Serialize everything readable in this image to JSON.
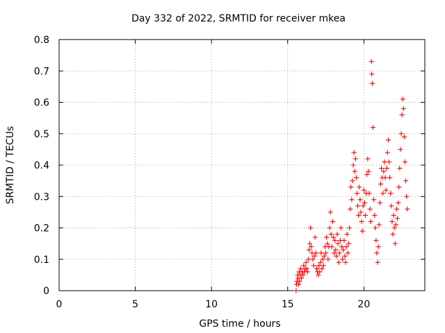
{
  "chart_data": {
    "type": "scatter",
    "title": "Day 332 of 2022, SRMTID for receiver mkea",
    "xlabel": "GPS time / hours",
    "ylabel": "SRMTID / TECUs",
    "xlim": [
      0,
      24
    ],
    "ylim": [
      0,
      0.8
    ],
    "xticks": [
      0,
      5,
      10,
      15,
      20
    ],
    "xtick_labels": [
      "0",
      "5",
      "10",
      "15",
      "20"
    ],
    "yticks": [
      0,
      0.1,
      0.2,
      0.3,
      0.4,
      0.5,
      0.6,
      0.7,
      0.8
    ],
    "ytick_labels": [
      "0",
      "0.1",
      "0.2",
      "0.3",
      "0.4",
      "0.5",
      "0.6",
      "0.7",
      "0.8"
    ],
    "grid": true,
    "marker": "plus",
    "color": "#ff0000",
    "series": [
      {
        "name": "mkea",
        "points": [
          [
            15.55,
            0.0
          ],
          [
            15.58,
            0.02
          ],
          [
            15.62,
            0.03
          ],
          [
            15.65,
            0.05
          ],
          [
            15.68,
            0.04
          ],
          [
            15.72,
            0.02
          ],
          [
            15.75,
            0.06
          ],
          [
            15.78,
            0.03
          ],
          [
            15.82,
            0.05
          ],
          [
            15.85,
            0.07
          ],
          [
            15.9,
            0.04
          ],
          [
            15.95,
            0.06
          ],
          [
            16.0,
            0.05
          ],
          [
            16.05,
            0.08
          ],
          [
            16.1,
            0.06
          ],
          [
            16.15,
            0.07
          ],
          [
            16.2,
            0.09
          ],
          [
            16.25,
            0.07
          ],
          [
            16.3,
            0.06
          ],
          [
            16.35,
            0.1
          ],
          [
            16.4,
            0.13
          ],
          [
            16.45,
            0.15
          ],
          [
            16.5,
            0.2
          ],
          [
            16.55,
            0.14
          ],
          [
            16.6,
            0.12
          ],
          [
            16.65,
            0.1
          ],
          [
            16.7,
            0.08
          ],
          [
            16.75,
            0.11
          ],
          [
            16.8,
            0.17
          ],
          [
            16.85,
            0.12
          ],
          [
            16.9,
            0.07
          ],
          [
            16.95,
            0.06
          ],
          [
            17.0,
            0.05
          ],
          [
            17.05,
            0.08
          ],
          [
            17.1,
            0.06
          ],
          [
            17.15,
            0.09
          ],
          [
            17.2,
            0.12
          ],
          [
            17.25,
            0.07
          ],
          [
            17.3,
            0.1
          ],
          [
            17.35,
            0.08
          ],
          [
            17.4,
            0.11
          ],
          [
            17.45,
            0.14
          ],
          [
            17.5,
            0.12
          ],
          [
            17.55,
            0.17
          ],
          [
            17.6,
            0.15
          ],
          [
            17.65,
            0.1
          ],
          [
            17.7,
            0.14
          ],
          [
            17.75,
            0.2
          ],
          [
            17.8,
            0.25
          ],
          [
            17.85,
            0.18
          ],
          [
            17.9,
            0.14
          ],
          [
            17.95,
            0.22
          ],
          [
            18.0,
            0.17
          ],
          [
            18.05,
            0.12
          ],
          [
            18.1,
            0.16
          ],
          [
            18.15,
            0.13
          ],
          [
            18.2,
            0.11
          ],
          [
            18.25,
            0.18
          ],
          [
            18.3,
            0.15
          ],
          [
            18.35,
            0.09
          ],
          [
            18.4,
            0.12
          ],
          [
            18.45,
            0.16
          ],
          [
            18.5,
            0.2
          ],
          [
            18.55,
            0.14
          ],
          [
            18.6,
            0.1
          ],
          [
            18.65,
            0.13
          ],
          [
            18.7,
            0.16
          ],
          [
            18.75,
            0.11
          ],
          [
            18.8,
            0.09
          ],
          [
            18.85,
            0.14
          ],
          [
            18.9,
            0.18
          ],
          [
            18.95,
            0.12
          ],
          [
            19.0,
            0.15
          ],
          [
            19.05,
            0.2
          ],
          [
            19.1,
            0.26
          ],
          [
            19.15,
            0.33
          ],
          [
            19.2,
            0.29
          ],
          [
            19.25,
            0.35
          ],
          [
            19.3,
            0.4
          ],
          [
            19.35,
            0.44
          ],
          [
            19.4,
            0.38
          ],
          [
            19.45,
            0.42
          ],
          [
            19.5,
            0.36
          ],
          [
            19.55,
            0.31
          ],
          [
            19.6,
            0.27
          ],
          [
            19.65,
            0.24
          ],
          [
            19.7,
            0.33
          ],
          [
            19.75,
            0.29
          ],
          [
            19.8,
            0.25
          ],
          [
            19.85,
            0.22
          ],
          [
            19.9,
            0.19
          ],
          [
            19.95,
            0.27
          ],
          [
            20.0,
            0.32
          ],
          [
            20.05,
            0.28
          ],
          [
            20.1,
            0.24
          ],
          [
            20.15,
            0.31
          ],
          [
            20.2,
            0.37
          ],
          [
            20.25,
            0.42
          ],
          [
            20.3,
            0.38
          ],
          [
            20.35,
            0.31
          ],
          [
            20.4,
            0.26
          ],
          [
            20.45,
            0.22
          ],
          [
            20.5,
            0.73
          ],
          [
            20.52,
            0.69
          ],
          [
            20.55,
            0.66
          ],
          [
            20.6,
            0.52
          ],
          [
            20.65,
            0.29
          ],
          [
            20.7,
            0.24
          ],
          [
            20.75,
            0.2
          ],
          [
            20.8,
            0.16
          ],
          [
            20.85,
            0.12
          ],
          [
            20.9,
            0.09
          ],
          [
            20.95,
            0.14
          ],
          [
            21.0,
            0.21
          ],
          [
            21.05,
            0.28
          ],
          [
            21.1,
            0.34
          ],
          [
            21.15,
            0.39
          ],
          [
            21.2,
            0.36
          ],
          [
            21.25,
            0.31
          ],
          [
            21.3,
            0.38
          ],
          [
            21.35,
            0.41
          ],
          [
            21.4,
            0.36
          ],
          [
            21.45,
            0.32
          ],
          [
            21.5,
            0.39
          ],
          [
            21.55,
            0.44
          ],
          [
            21.6,
            0.48
          ],
          [
            21.65,
            0.41
          ],
          [
            21.7,
            0.36
          ],
          [
            21.75,
            0.31
          ],
          [
            21.8,
            0.27
          ],
          [
            21.85,
            0.22
          ],
          [
            21.9,
            0.18
          ],
          [
            21.95,
            0.24
          ],
          [
            22.0,
            0.2
          ],
          [
            22.05,
            0.15
          ],
          [
            22.1,
            0.21
          ],
          [
            22.15,
            0.26
          ],
          [
            22.2,
            0.23
          ],
          [
            22.25,
            0.28
          ],
          [
            22.3,
            0.33
          ],
          [
            22.35,
            0.39
          ],
          [
            22.4,
            0.45
          ],
          [
            22.45,
            0.5
          ],
          [
            22.5,
            0.56
          ],
          [
            22.55,
            0.61
          ],
          [
            22.6,
            0.58
          ],
          [
            22.65,
            0.49
          ],
          [
            22.7,
            0.41
          ],
          [
            22.75,
            0.35
          ],
          [
            22.8,
            0.3
          ],
          [
            22.85,
            0.26
          ]
        ]
      }
    ]
  }
}
